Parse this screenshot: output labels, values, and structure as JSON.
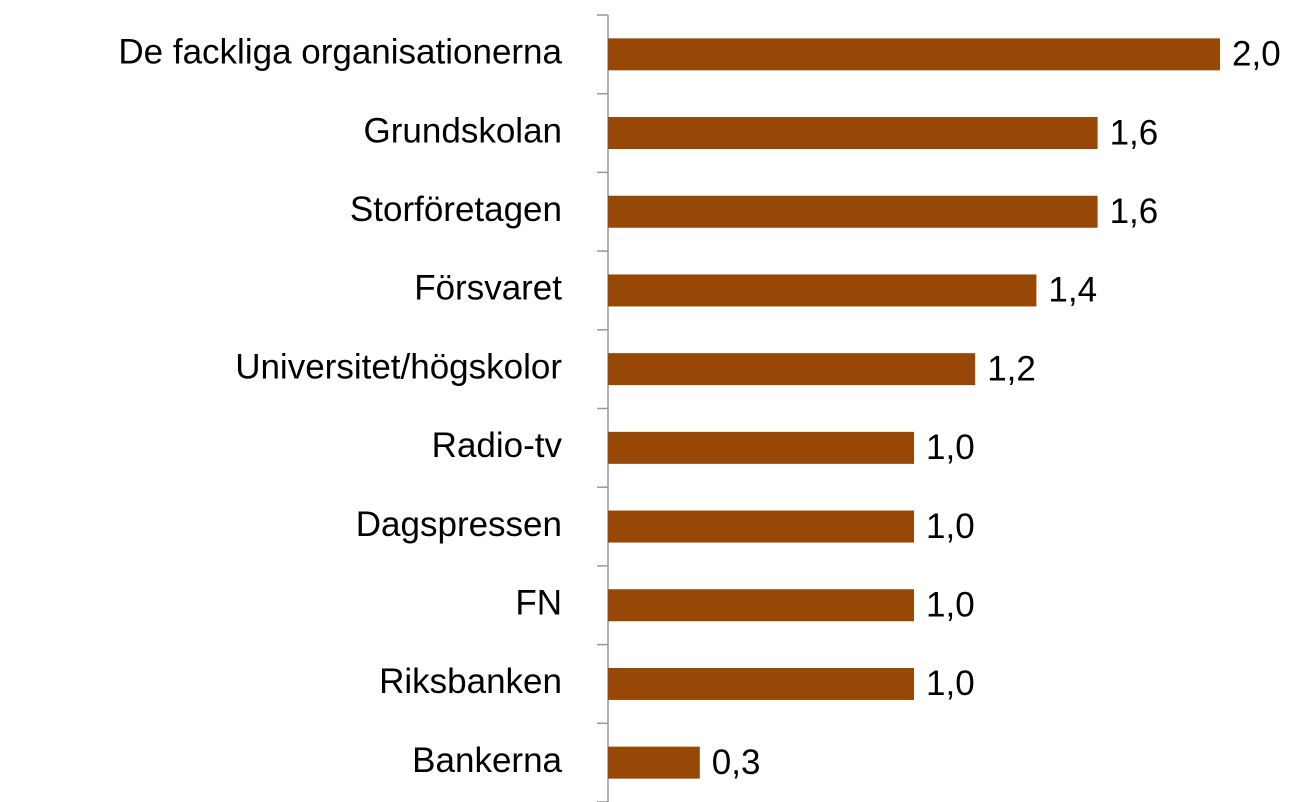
{
  "chart_data": {
    "type": "bar",
    "orientation": "horizontal",
    "categories": [
      "De fackliga organisationerna",
      "Grundskolan",
      "Storföretagen",
      "Försvaret",
      "Universitet/högskolor",
      "Radio-tv",
      "Dagspressen",
      "FN",
      "Riksbanken",
      "Bankerna"
    ],
    "values": [
      2.0,
      1.6,
      1.6,
      1.4,
      1.2,
      1.0,
      1.0,
      1.0,
      1.0,
      0.3
    ],
    "value_labels": [
      "2,0",
      "1,6",
      "1,6",
      "1,4",
      "1,2",
      "1,0",
      "1,0",
      "1,0",
      "1,0",
      "0,3"
    ],
    "color": "#974706"
  }
}
